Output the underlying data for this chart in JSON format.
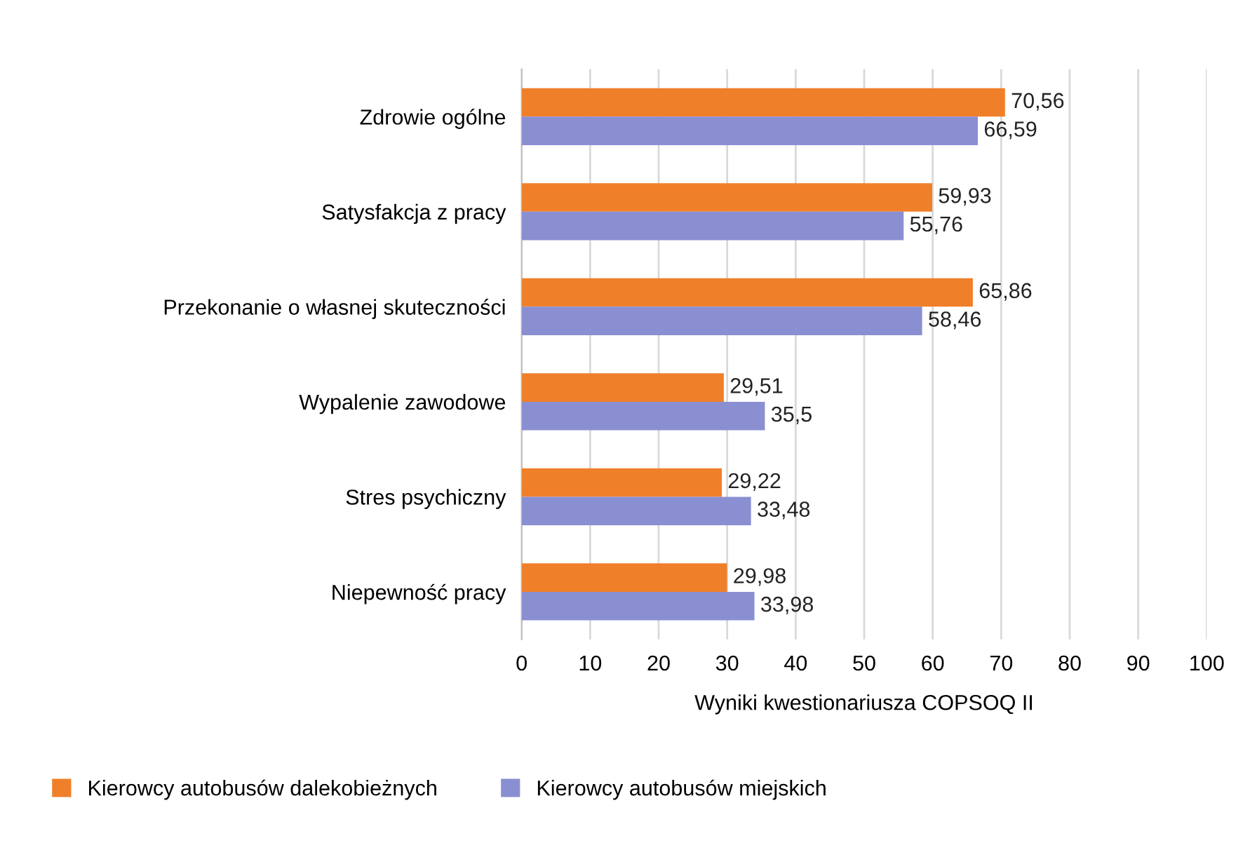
{
  "chart_data": {
    "type": "bar",
    "orientation": "horizontal",
    "categories": [
      "Zdrowie ogólne",
      "Satysfakcja z pracy",
      "Przekonanie o własnej skuteczności",
      "Wypalenie zawodowe",
      "Stres psychiczny",
      "Niepewność pracy"
    ],
    "series": [
      {
        "name": "Kierowcy autobusów dalekobieżnych",
        "color": "#f07f2a",
        "values": [
          70.56,
          59.93,
          65.86,
          29.51,
          29.22,
          29.98
        ],
        "value_labels": [
          "70,56",
          "59,93",
          "65,86",
          "29,51",
          "29,22",
          "29,98"
        ]
      },
      {
        "name": "Kierowcy autobusów miejskich",
        "color": "#8a8fd2",
        "values": [
          66.59,
          55.76,
          58.46,
          35.5,
          33.48,
          33.98
        ],
        "value_labels": [
          "66,59",
          "55,76",
          "58,46",
          "35,5",
          "33,48",
          "33,98"
        ]
      }
    ],
    "xlabel": "Wyniki kwestionariusza COPSOQ II",
    "xlim": [
      0,
      100
    ],
    "xticks": [
      0,
      10,
      20,
      30,
      40,
      50,
      60,
      70,
      80,
      90,
      100
    ],
    "grid": "x",
    "legend": "bottom"
  }
}
